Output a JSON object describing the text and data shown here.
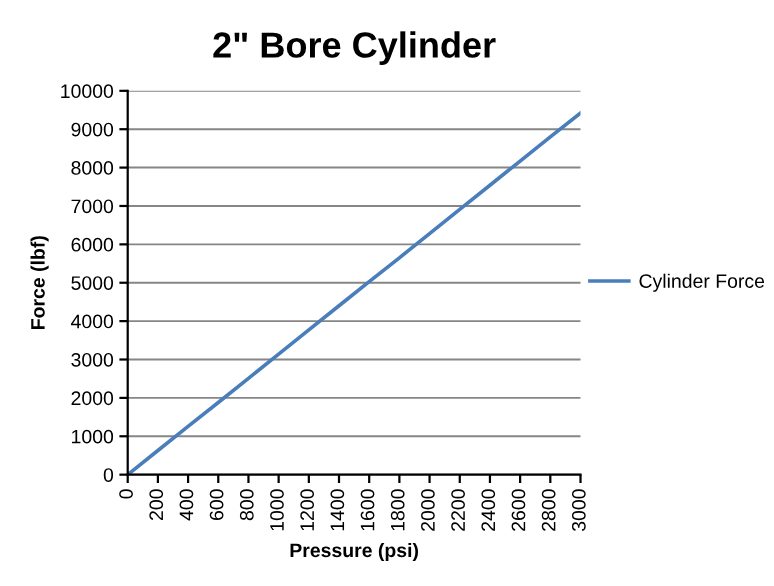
{
  "chart_data": {
    "type": "line",
    "title": "2\" Bore Cylinder",
    "xlabel": "Pressure (psi)",
    "ylabel": "Force (lbf)",
    "x": [
      0,
      200,
      400,
      600,
      800,
      1000,
      1200,
      1400,
      1600,
      1800,
      2000,
      2200,
      2400,
      2600,
      2800,
      3000
    ],
    "series": [
      {
        "name": "Cylinder Force",
        "color": "#4a7ebb",
        "values": [
          0,
          630,
          1260,
          1880,
          2510,
          3140,
          3770,
          4400,
          5030,
          5650,
          6280,
          6910,
          7540,
          8170,
          8800,
          9420
        ]
      }
    ],
    "xlim": [
      0,
      3000
    ],
    "xticks": [
      0,
      200,
      400,
      600,
      800,
      1000,
      1200,
      1400,
      1600,
      1800,
      2000,
      2200,
      2400,
      2600,
      2800,
      3000
    ],
    "ylim": [
      0,
      10000
    ],
    "yticks": [
      0,
      1000,
      2000,
      3000,
      4000,
      5000,
      6000,
      7000,
      8000,
      9000,
      10000
    ],
    "grid": "y",
    "legend": "right",
    "marker": "none",
    "line_style": "solid"
  }
}
